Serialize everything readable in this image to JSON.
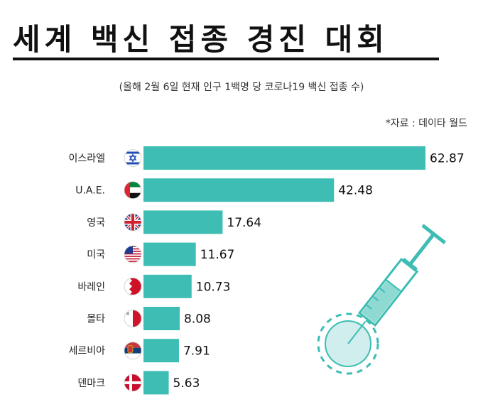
{
  "header": {
    "title": "세계 백신 접종 경진 대회",
    "subtitle": "(올해 2월 6일 현재 인구 1백명 당 코로나19 백신 접종 수)",
    "source": "*자료 :  데이타 월드"
  },
  "colors": {
    "bar": "#3dbdb4",
    "syringe": "#3dbdb4"
  },
  "chart_data": {
    "type": "bar",
    "orientation": "horizontal",
    "title": "세계 백신 접종 경진 대회",
    "subtitle": "(올해 2월 6일 현재 인구 1백명 당 코로나19 백신 접종 수)",
    "categories": [
      "이스라엘",
      "U.A.E.",
      "영국",
      "미국",
      "바레인",
      "몰타",
      "세르비아",
      "덴마크"
    ],
    "values": [
      62.87,
      42.48,
      17.64,
      11.67,
      10.73,
      8.08,
      7.91,
      5.63
    ],
    "value_labels": [
      "62.87",
      "42.48",
      "17.64",
      "11.67",
      "10.73",
      "8.08",
      "7.91",
      "5.63"
    ],
    "flags": [
      "israel-flag-icon",
      "uae-flag-icon",
      "uk-flag-icon",
      "usa-flag-icon",
      "bahrain-flag-icon",
      "malta-flag-icon",
      "serbia-flag-icon",
      "denmark-flag-icon"
    ],
    "xlim": [
      0,
      62.87
    ],
    "grid": false,
    "legend": "none"
  }
}
